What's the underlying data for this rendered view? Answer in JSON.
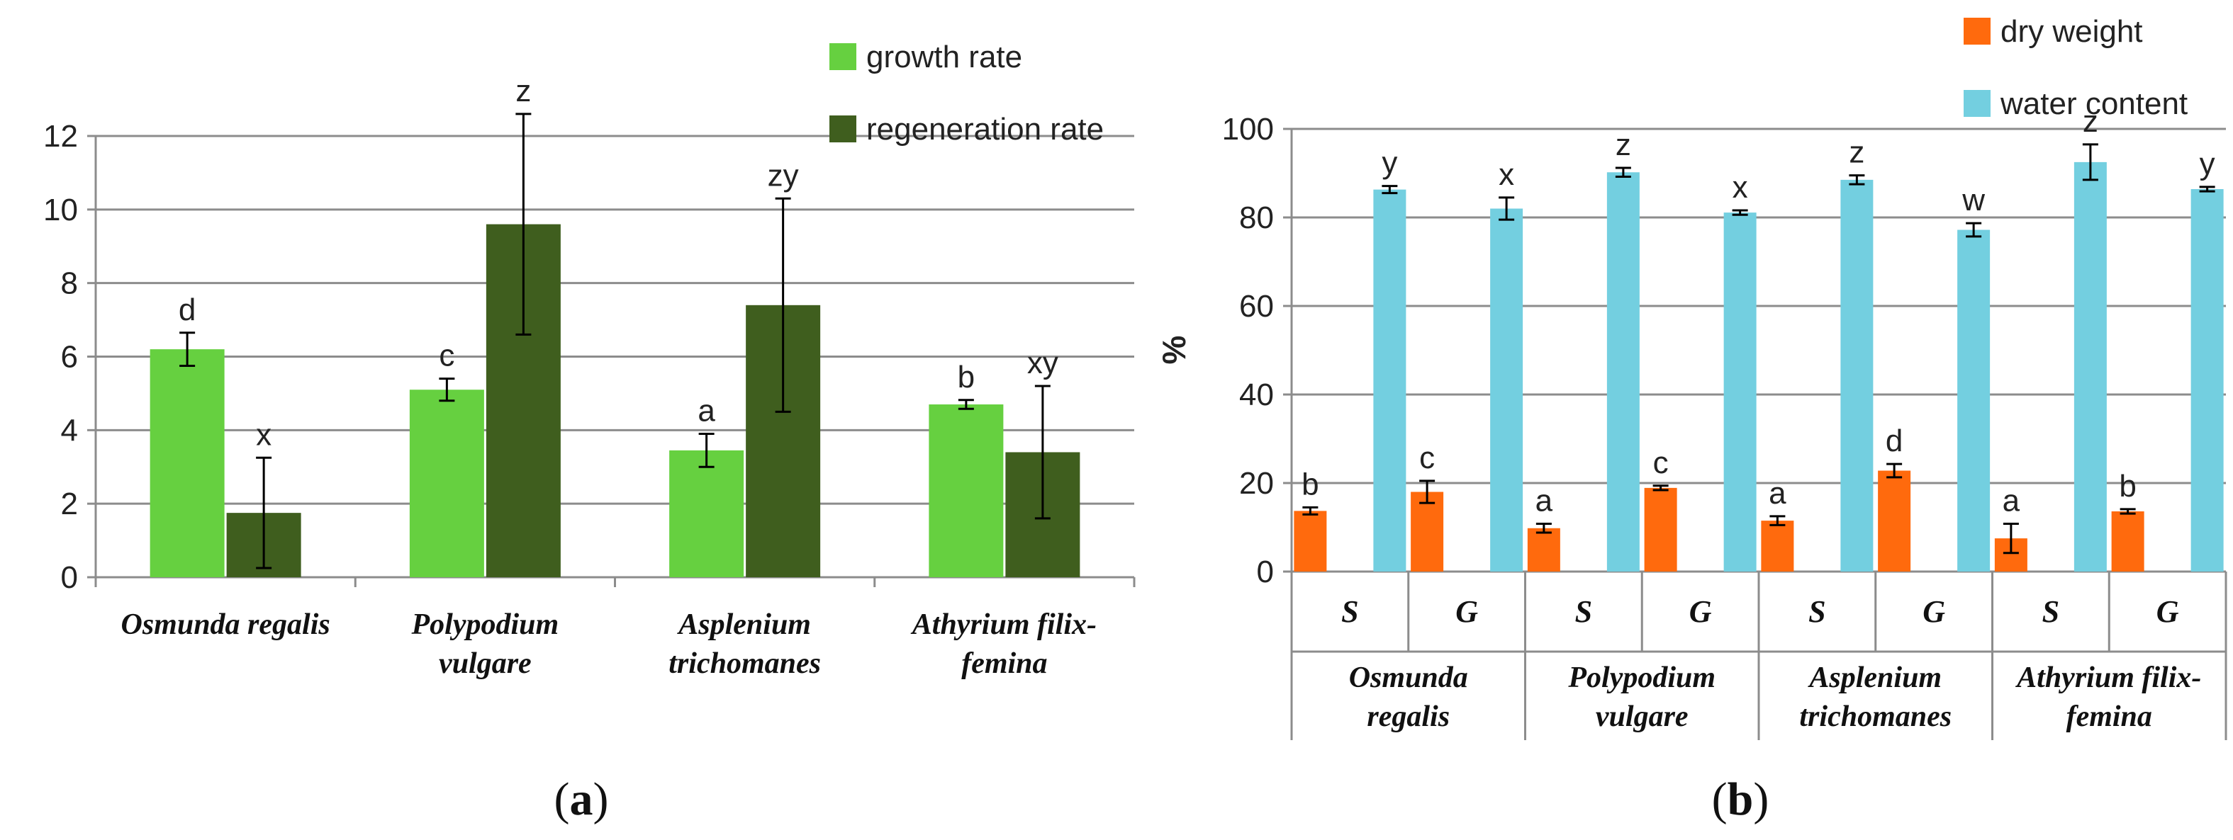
{
  "chart_data": [
    {
      "type": "bar",
      "panel_label": "(a)",
      "title": "",
      "xlabel": "",
      "ylabel": "",
      "ylim": [
        0,
        12
      ],
      "yticks": [
        0,
        2,
        4,
        6,
        8,
        10,
        12
      ],
      "grid": true,
      "legend_position": "top-right",
      "categories": [
        [
          "Osmunda regalis"
        ],
        [
          "Polypodium",
          "vulgare"
        ],
        [
          "Asplenium",
          "trichomanes"
        ],
        [
          "Athyrium filix-",
          "femina"
        ]
      ],
      "series": [
        {
          "name": "growth rate",
          "color": "#66D040",
          "values": [
            6.2,
            5.1,
            3.45,
            4.7
          ],
          "errors": [
            0.45,
            0.3,
            0.45,
            0.12
          ],
          "letters": [
            "d",
            "c",
            "a",
            "b"
          ]
        },
        {
          "name": "regeneration rate",
          "color": "#3F5E1E",
          "values": [
            1.75,
            9.6,
            7.4,
            3.4
          ],
          "errors": [
            1.5,
            3.0,
            2.9,
            1.8
          ],
          "letters": [
            "x",
            "z",
            "zy",
            "xy"
          ]
        }
      ]
    },
    {
      "type": "bar",
      "panel_label": "(b)",
      "title": "",
      "xlabel": "",
      "ylabel": "%",
      "ylim": [
        0,
        100
      ],
      "yticks": [
        0,
        20,
        40,
        60,
        80,
        100
      ],
      "grid": true,
      "legend_position": "top-right",
      "subcategories": [
        "S",
        "G",
        "S",
        "G",
        "S",
        "G",
        "S",
        "G"
      ],
      "groups": [
        [
          "Osmunda",
          "regalis"
        ],
        [
          "Polypodium",
          "vulgare"
        ],
        [
          "Asplenium",
          "trichomanes"
        ],
        [
          "Athyrium filix-",
          "femina"
        ]
      ],
      "series": [
        {
          "name": "dry weight",
          "color": "#FF6A0D",
          "values": [
            13.7,
            18.0,
            9.8,
            18.9,
            11.5,
            22.8,
            7.5,
            13.6
          ],
          "errors": [
            0.8,
            2.5,
            1.0,
            0.5,
            1.0,
            1.5,
            3.3,
            0.5
          ],
          "letters": [
            "b",
            "c",
            "a",
            "c",
            "a",
            "d",
            "a",
            "b"
          ]
        },
        {
          "name": "water content",
          "color": "#73CFE0",
          "values": [
            86.3,
            82.0,
            90.2,
            81.1,
            88.5,
            77.2,
            92.5,
            86.4
          ],
          "errors": [
            0.8,
            2.5,
            1.0,
            0.5,
            1.0,
            1.5,
            4.0,
            0.5
          ],
          "letters": [
            "y",
            "x",
            "z",
            "x",
            "z",
            "w",
            "z",
            "y"
          ]
        }
      ]
    }
  ]
}
